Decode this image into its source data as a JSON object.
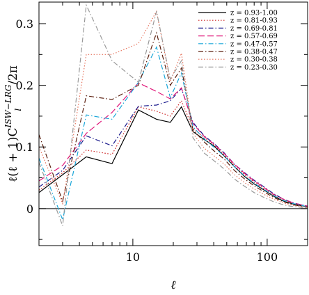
{
  "chart_data": {
    "type": "line",
    "xscale": "log",
    "xlim": [
      2,
      200
    ],
    "ylim": [
      -0.06,
      0.335
    ],
    "xticks": [
      {
        "value": 10,
        "label": "10"
      },
      {
        "value": 100,
        "label": "100"
      }
    ],
    "yticks": [
      {
        "value": 0,
        "label": "0"
      },
      {
        "value": 0.1,
        "label": "0.1"
      },
      {
        "value": 0.2,
        "label": "0.2"
      },
      {
        "value": 0.3,
        "label": "0.3"
      }
    ],
    "xlabel": "ℓ",
    "ylabel": "ℓ(ℓ+1)C_l^{ISW-LRG}/2π",
    "ylabel_parts": {
      "prefix": "ℓ(ℓ + 1)C",
      "sup": "ISW−LRG",
      "sub": "l",
      "suffix": "/2π"
    },
    "zero_line": true,
    "legend_position": "top-right",
    "x": [
      2,
      3,
      4.5,
      7,
      11,
      15,
      19,
      23,
      28,
      34,
      40,
      48,
      57,
      68,
      80,
      95,
      112,
      133,
      158,
      200
    ],
    "series": [
      {
        "name": "z = 0.93-1.00",
        "color": "#000000",
        "dash": "solid",
        "values": [
          0.026,
          0.055,
          0.084,
          0.073,
          0.16,
          0.145,
          0.14,
          0.165,
          0.125,
          0.112,
          0.102,
          0.085,
          0.068,
          0.052,
          0.04,
          0.03,
          0.02,
          0.012,
          0.007,
          0.003
        ]
      },
      {
        "name": "z = 0.81-0.93",
        "color": "#cc2222",
        "dash": "dot",
        "values": [
          0.03,
          0.058,
          0.095,
          0.088,
          0.165,
          0.158,
          0.15,
          0.175,
          0.13,
          0.115,
          0.104,
          0.087,
          0.07,
          0.055,
          0.043,
          0.032,
          0.022,
          0.014,
          0.008,
          0.003
        ]
      },
      {
        "name": "z = 0.69-0.81",
        "color": "#1a1a8c",
        "dash": "dashdot",
        "values": [
          0.035,
          0.062,
          0.118,
          0.102,
          0.166,
          0.168,
          0.175,
          0.195,
          0.14,
          0.118,
          0.106,
          0.09,
          0.072,
          0.058,
          0.046,
          0.035,
          0.024,
          0.015,
          0.009,
          0.004
        ]
      },
      {
        "name": "z = 0.57-0.69",
        "color": "#e0187a",
        "dash": "longdash",
        "values": [
          0.045,
          0.07,
          0.122,
          0.156,
          0.204,
          0.19,
          0.178,
          0.196,
          0.138,
          0.117,
          0.105,
          0.089,
          0.072,
          0.057,
          0.045,
          0.034,
          0.023,
          0.015,
          0.009,
          0.004
        ]
      },
      {
        "name": "z = 0.47-0.57",
        "color": "#1aa6d8",
        "dash": "dashdot",
        "values": [
          0.082,
          -0.018,
          0.152,
          0.145,
          0.205,
          0.262,
          0.18,
          0.22,
          0.133,
          0.113,
          0.1,
          0.085,
          0.068,
          0.053,
          0.041,
          0.031,
          0.021,
          0.013,
          0.008,
          0.003
        ]
      },
      {
        "name": "z = 0.38-0.47",
        "color": "#5a1e0e",
        "dash": "dashdot",
        "values": [
          0.12,
          0.012,
          0.183,
          0.177,
          0.2,
          0.285,
          0.2,
          0.228,
          0.128,
          0.108,
          0.094,
          0.08,
          0.062,
          0.048,
          0.037,
          0.027,
          0.018,
          0.011,
          0.006,
          0.002
        ]
      },
      {
        "name": "z = 0.30-0.38",
        "color": "#e6735c",
        "dash": "dot",
        "values": [
          0.1,
          0.008,
          0.25,
          0.25,
          0.268,
          0.32,
          0.206,
          0.252,
          0.122,
          0.098,
          0.086,
          0.072,
          0.055,
          0.042,
          0.032,
          0.023,
          0.015,
          0.009,
          0.005,
          0.002
        ]
      },
      {
        "name": "z = 0.23-0.30",
        "color": "#999999",
        "dash": "dashdot",
        "values": [
          0.075,
          -0.028,
          0.33,
          0.24,
          0.205,
          0.32,
          0.21,
          0.24,
          0.115,
          0.09,
          0.078,
          0.064,
          0.048,
          0.036,
          0.026,
          0.018,
          0.011,
          0.006,
          0.003,
          0.001
        ]
      }
    ]
  }
}
